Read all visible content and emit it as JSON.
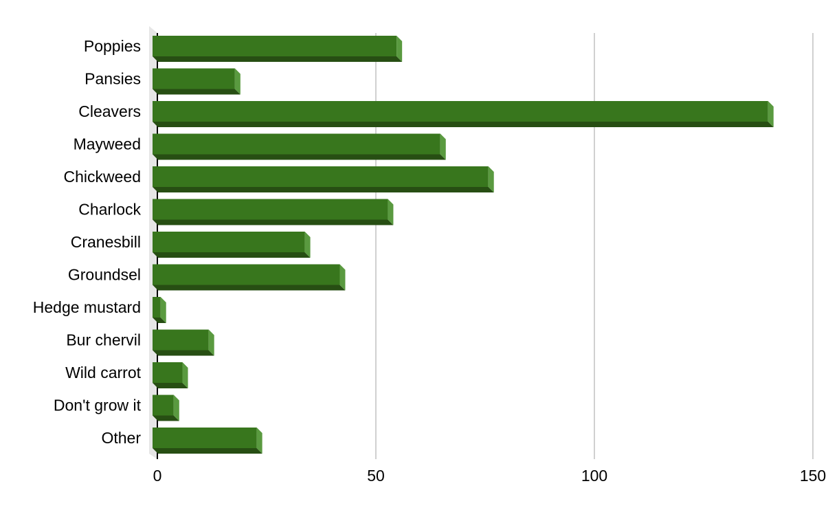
{
  "chart_data": {
    "type": "bar",
    "orientation": "horizontal",
    "style": "3d",
    "categories": [
      "Poppies",
      "Pansies",
      "Cleavers",
      "Mayweed",
      "Chickweed",
      "Charlock",
      "Cranesbill",
      "Groundsel",
      "Hedge mustard",
      "Bur chervil",
      "Wild carrot",
      "Don't grow it",
      "Other"
    ],
    "values": [
      56,
      19,
      141,
      66,
      77,
      54,
      35,
      43,
      2,
      13,
      7,
      5,
      24
    ],
    "xlim": [
      0,
      150
    ],
    "x_ticks": [
      0,
      50,
      100,
      150
    ],
    "x_tick_labels": [
      "0",
      "50",
      "100",
      "150"
    ],
    "title": "",
    "xlabel": "",
    "ylabel": "",
    "grid": "vertical",
    "legend": "none",
    "colors": {
      "bar_front": "#38761d",
      "bar_bottom": "#274e13",
      "bar_end": "#5a9a40",
      "grid": "#c0c0c0",
      "axis": "#000000",
      "wall": "#e6e6e6"
    }
  }
}
